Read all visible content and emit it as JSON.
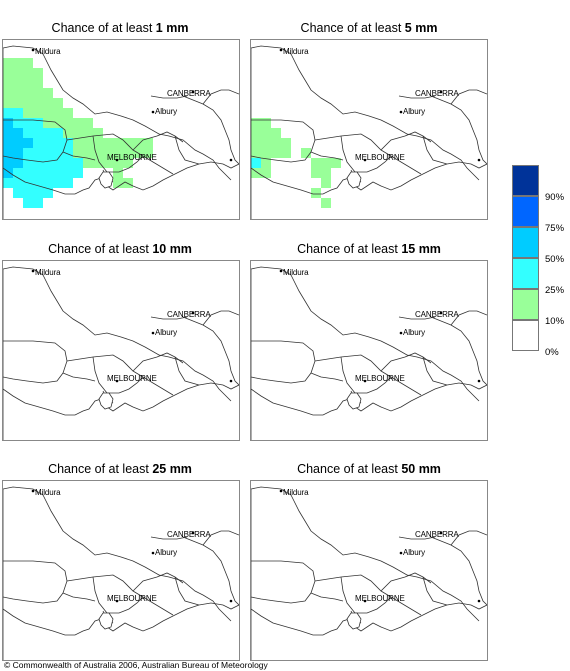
{
  "panels": [
    {
      "title_prefix": "Chance of at least ",
      "title_value": "1 mm",
      "coverage": "high"
    },
    {
      "title_prefix": "Chance of at least ",
      "title_value": "5 mm",
      "coverage": "low"
    },
    {
      "title_prefix": "Chance of at least ",
      "title_value": "10 mm",
      "coverage": "none"
    },
    {
      "title_prefix": "Chance of at least ",
      "title_value": "15 mm",
      "coverage": "none"
    },
    {
      "title_prefix": "Chance of at least ",
      "title_value": "25 mm",
      "coverage": "none"
    },
    {
      "title_prefix": "Chance of at least ",
      "title_value": "50 mm",
      "coverage": "none"
    }
  ],
  "places": {
    "mildura": "Mildura",
    "canberra": "CANBERRA",
    "albury": "Albury",
    "melbourne": "MELBOURNE"
  },
  "legend": {
    "labels": [
      "90%",
      "75%",
      "50%",
      "25%",
      "10%",
      "0%"
    ],
    "colors": [
      "#003399",
      "#0066ff",
      "#00ccff",
      "#33ffff",
      "#99ff99",
      "#ffffff"
    ]
  },
  "copyright": "© Commonwealth of Australia 2006, Australian Bureau of Meteorology"
}
